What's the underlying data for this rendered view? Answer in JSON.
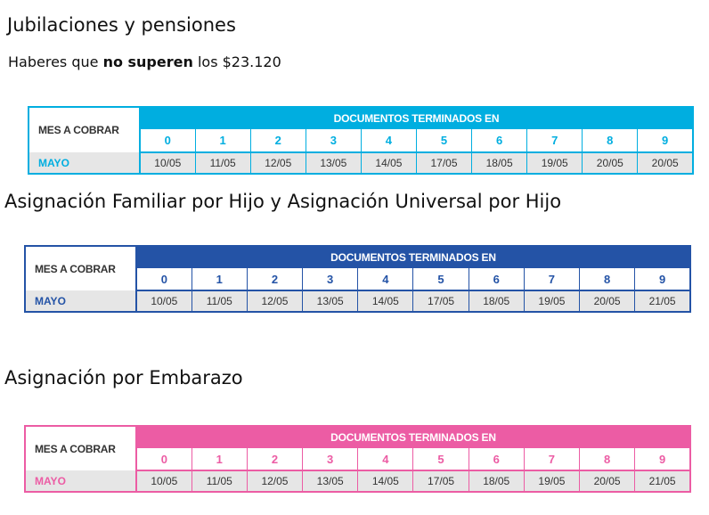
{
  "section1": {
    "title": "Jubilaciones y pensiones",
    "subtitle_pre": "Haberes que ",
    "subtitle_bold": "no superen",
    "subtitle_post": " los $23.120",
    "accent": "#00aee0",
    "table": {
      "mes_header": "MES A COBRAR",
      "docs_header": "DOCUMENTOS TERMINADOS EN",
      "digits": [
        "0",
        "1",
        "2",
        "3",
        "4",
        "5",
        "6",
        "7",
        "8",
        "9"
      ],
      "month": "MAYO",
      "dates": [
        "10/05",
        "11/05",
        "12/05",
        "13/05",
        "14/05",
        "17/05",
        "18/05",
        "19/05",
        "20/05",
        "20/05"
      ]
    }
  },
  "section2": {
    "title": "Asignación Familiar por Hijo y Asignación Universal por Hijo",
    "accent": "#2453a6",
    "table": {
      "mes_header": "MES A COBRAR",
      "docs_header": "DOCUMENTOS TERMINADOS EN",
      "digits": [
        "0",
        "1",
        "2",
        "3",
        "4",
        "5",
        "6",
        "7",
        "8",
        "9"
      ],
      "month": "MAYO",
      "dates": [
        "10/05",
        "11/05",
        "12/05",
        "13/05",
        "14/05",
        "17/05",
        "18/05",
        "19/05",
        "20/05",
        "21/05"
      ]
    }
  },
  "section3": {
    "title": "Asignación por Embarazo",
    "accent": "#ec5ca4",
    "table": {
      "mes_header": "MES A COBRAR",
      "docs_header": "DOCUMENTOS TERMINADOS EN",
      "digits": [
        "0",
        "1",
        "2",
        "3",
        "4",
        "5",
        "6",
        "7",
        "8",
        "9"
      ],
      "month": "MAYO",
      "dates": [
        "10/05",
        "11/05",
        "12/05",
        "13/05",
        "14/05",
        "17/05",
        "18/05",
        "19/05",
        "20/05",
        "21/05"
      ]
    }
  }
}
